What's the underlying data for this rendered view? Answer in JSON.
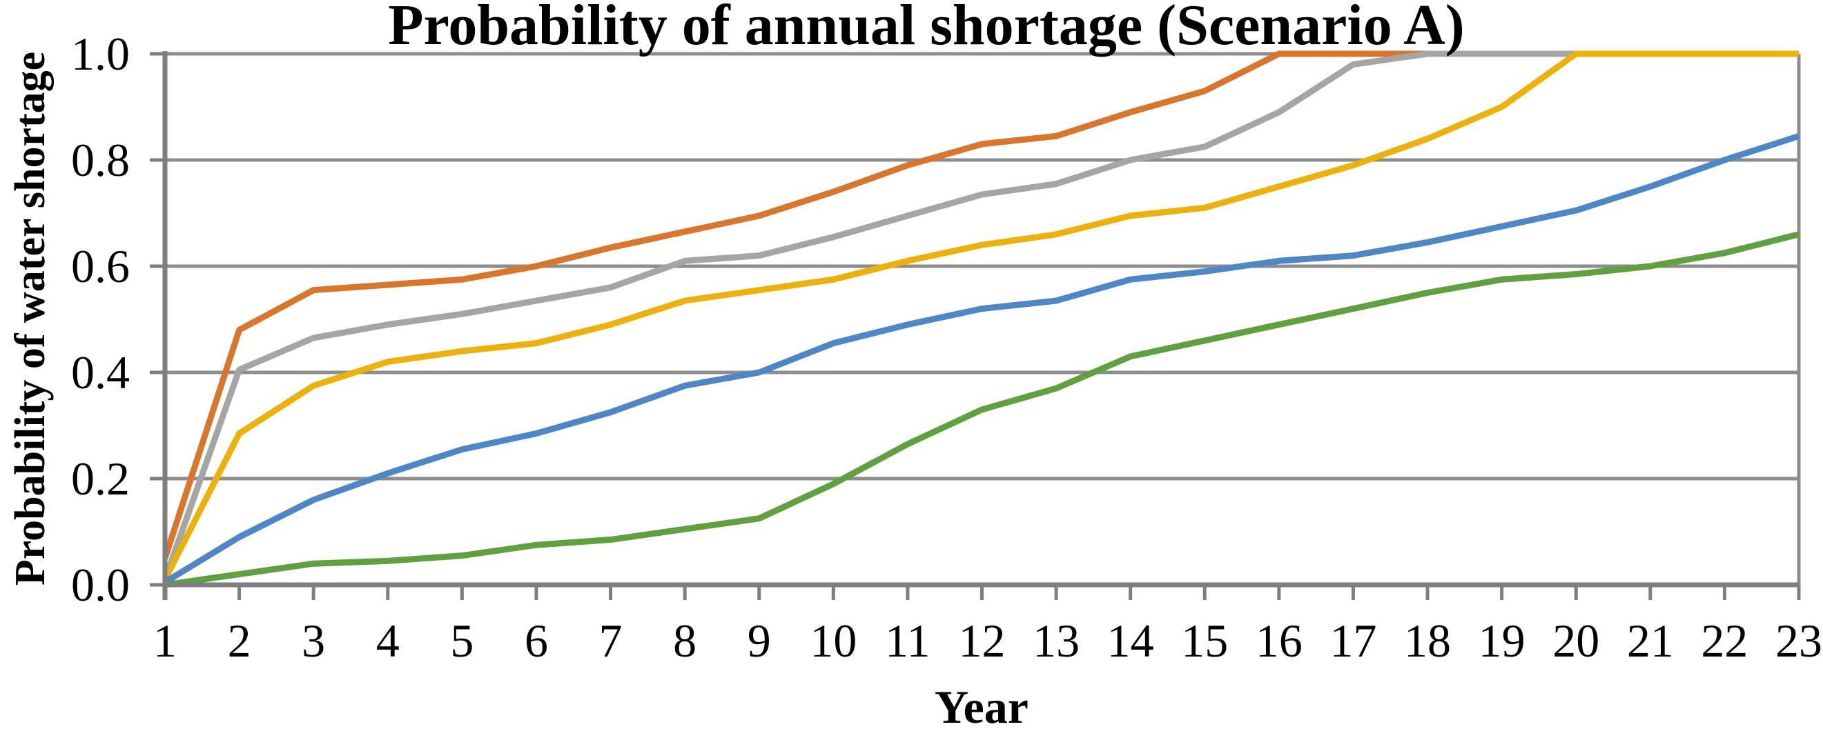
{
  "chart": {
    "title": "Probability of annual shortage (Scenario A)",
    "xlabel": "Year",
    "ylabel": "Probability of water shortage"
  },
  "chart_data": {
    "type": "line",
    "title": "Probability of annual shortage (Scenario A)",
    "xlabel": "Year",
    "ylabel": "Probability of water shortage",
    "x": [
      1,
      2,
      3,
      4,
      5,
      6,
      7,
      8,
      9,
      10,
      11,
      12,
      13,
      14,
      15,
      16,
      17,
      18,
      19,
      20,
      21,
      22,
      23
    ],
    "xlim": [
      1,
      23
    ],
    "ylim": [
      0.0,
      1.0
    ],
    "ytick_labels": [
      "0.0",
      "0.2",
      "0.4",
      "0.6",
      "0.8",
      "1.0"
    ],
    "grid": true,
    "legend_position": "none",
    "markers": false,
    "series": [
      {
        "name": "orange",
        "color": "#D9762E",
        "values": [
          0.05,
          0.48,
          0.555,
          0.565,
          0.575,
          0.6,
          0.635,
          0.665,
          0.695,
          0.74,
          0.79,
          0.83,
          0.845,
          0.89,
          0.93,
          1.0,
          1.0,
          1.0,
          1.0,
          1.0,
          1.0,
          1.0,
          1.0
        ]
      },
      {
        "name": "gray",
        "color": "#A5A5A5",
        "values": [
          0.01,
          0.405,
          0.465,
          0.49,
          0.51,
          0.535,
          0.56,
          0.61,
          0.62,
          0.655,
          0.695,
          0.735,
          0.755,
          0.8,
          0.825,
          0.89,
          0.98,
          1.0,
          1.0,
          1.0,
          1.0,
          1.0,
          1.0
        ]
      },
      {
        "name": "gold",
        "color": "#EDB10E",
        "values": [
          0.01,
          0.285,
          0.375,
          0.42,
          0.44,
          0.455,
          0.49,
          0.535,
          0.555,
          0.575,
          0.61,
          0.64,
          0.66,
          0.695,
          0.71,
          0.75,
          0.79,
          0.84,
          0.9,
          1.0,
          1.0,
          1.0,
          1.0
        ]
      },
      {
        "name": "blue",
        "color": "#4F86C5",
        "values": [
          0.005,
          0.09,
          0.16,
          0.21,
          0.255,
          0.285,
          0.325,
          0.375,
          0.4,
          0.455,
          0.49,
          0.52,
          0.535,
          0.575,
          0.59,
          0.61,
          0.62,
          0.645,
          0.675,
          0.705,
          0.75,
          0.8,
          0.845
        ]
      },
      {
        "name": "green",
        "color": "#60A03F",
        "values": [
          0.0,
          0.02,
          0.04,
          0.045,
          0.055,
          0.075,
          0.085,
          0.105,
          0.125,
          0.19,
          0.265,
          0.33,
          0.37,
          0.43,
          0.46,
          0.49,
          0.52,
          0.55,
          0.575,
          0.585,
          0.6,
          0.625,
          0.66
        ]
      }
    ],
    "colors": {
      "gridline": "#8D8D8D",
      "axis": "#7E7E7E",
      "text": "#000000",
      "background": "#FFFFFF"
    }
  }
}
